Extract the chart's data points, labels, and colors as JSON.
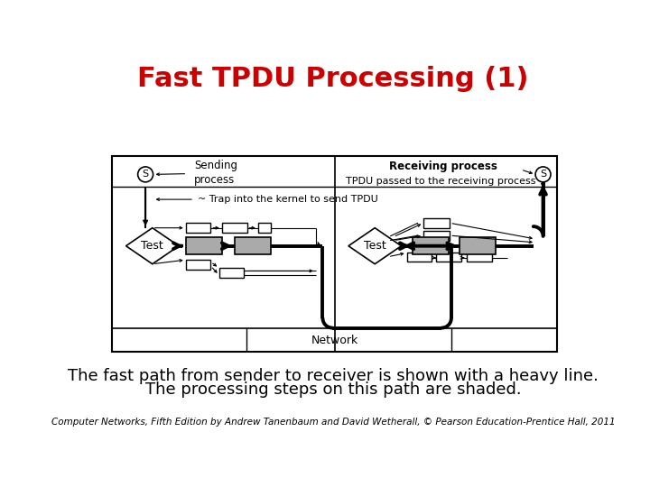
{
  "title": "Fast TPDU Processing (1)",
  "title_color": "#cc0000",
  "title_fontsize": 22,
  "body_text1": "The fast path from sender to receiver is shown with a heavy line.",
  "body_text2": "The processing steps on this path are shaded.",
  "body_fontsize": 13,
  "caption": "Computer Networks, Fifth Edition by Andrew Tanenbaum and David Wetherall, © Pearson Education-Prentice Hall, 2011",
  "caption_fontsize": 7.5,
  "bg_color": "#ffffff",
  "gray_box_color": "#aaaaaa",
  "network_label": "Network",
  "sender_label": "Sending\nprocess",
  "receiver_label": "Receiving process",
  "tpdu_label": "TPDU passed to the receiving process",
  "trap_label": "~ Trap into the kernel to send TPDU",
  "test_label": "Test",
  "s_label": "S"
}
